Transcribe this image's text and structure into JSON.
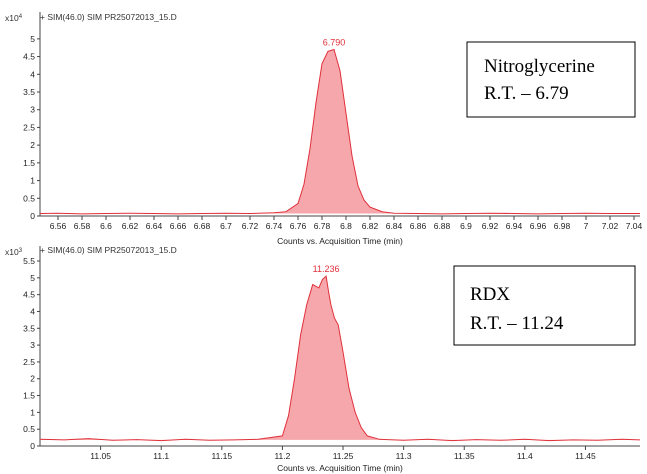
{
  "colors": {
    "trace": "#e0303a",
    "fill": "#f6a7ab",
    "axis": "#444444",
    "header_bg": "#ffffff"
  },
  "chart_data": [
    {
      "type": "line",
      "header": "+ SIM(46.0) SIM PR25072013_15.D",
      "multiplier": "x10",
      "exponent": "4",
      "xlabel": "Counts vs. Acquisition Time (min)",
      "xlim": [
        6.545,
        7.045
      ],
      "ylim": [
        0,
        5.25
      ],
      "x_ticks": [
        6.56,
        6.58,
        6.6,
        6.62,
        6.64,
        6.66,
        6.68,
        6.7,
        6.72,
        6.74,
        6.76,
        6.78,
        6.8,
        6.82,
        6.84,
        6.86,
        6.88,
        6.9,
        6.92,
        6.94,
        6.96,
        6.98,
        7.0,
        7.02,
        7.04
      ],
      "x_tick_labels": [
        "6.56",
        "6.58",
        "6.6",
        "6.62",
        "6.64",
        "6.66",
        "6.68",
        "6.7",
        "6.72",
        "6.74",
        "6.76",
        "6.78",
        "6.8",
        "6.82",
        "6.84",
        "6.86",
        "6.88",
        "6.9",
        "6.92",
        "6.94",
        "6.96",
        "6.98",
        "7",
        "7.02",
        "7.04"
      ],
      "y_ticks": [
        0,
        0.5,
        1,
        1.5,
        2,
        2.5,
        3,
        3.5,
        4,
        4.5,
        5
      ],
      "y_tick_labels": [
        "0",
        "0.5",
        "1",
        "1.5",
        "2",
        "2.5",
        "3",
        "3.5",
        "4",
        "4.5",
        "5"
      ],
      "peak": {
        "x": 6.79,
        "y": 4.7,
        "label": "6.790"
      },
      "baseline": 0.07,
      "series": [
        {
          "x": [
            6.545,
            6.56,
            6.58,
            6.6,
            6.62,
            6.64,
            6.66,
            6.68,
            6.7,
            6.72,
            6.74,
            6.75,
            6.76,
            6.765,
            6.77,
            6.775,
            6.78,
            6.785,
            6.79,
            6.795,
            6.8,
            6.805,
            6.81,
            6.815,
            6.82,
            6.83,
            6.84,
            6.86,
            6.88,
            6.9,
            6.92,
            6.94,
            6.96,
            6.98,
            7.0,
            7.02,
            7.045
          ],
          "values": [
            0.07,
            0.08,
            0.06,
            0.07,
            0.08,
            0.07,
            0.06,
            0.07,
            0.08,
            0.07,
            0.09,
            0.12,
            0.35,
            0.9,
            1.9,
            3.2,
            4.3,
            4.65,
            4.7,
            4.1,
            2.9,
            1.7,
            0.85,
            0.45,
            0.25,
            0.12,
            0.08,
            0.07,
            0.06,
            0.07,
            0.08,
            0.07,
            0.06,
            0.07,
            0.08,
            0.07,
            0.07
          ]
        }
      ],
      "annotation": [
        "Nitroglycerine",
        "R.T. – 6.79"
      ]
    },
    {
      "type": "line",
      "header": "+ SIM(46.0) SIM PR25072013_15.D",
      "multiplier": "x10",
      "exponent": "3",
      "xlabel": "Counts vs. Acquisition Time (min)",
      "xlim": [
        11.0,
        11.495
      ],
      "ylim": [
        0,
        5.5
      ],
      "x_ticks": [
        11.05,
        11.1,
        11.15,
        11.2,
        11.25,
        11.3,
        11.35,
        11.4,
        11.45
      ],
      "x_tick_labels": [
        "11.05",
        "11.1",
        "11.15",
        "11.2",
        "11.25",
        "11.3",
        "11.35",
        "11.4",
        "11.45"
      ],
      "y_ticks": [
        0,
        0.5,
        1,
        1.5,
        2,
        2.5,
        3,
        3.5,
        4,
        4.5,
        5,
        5.5
      ],
      "y_tick_labels": [
        "0",
        "0.5",
        "1",
        "1.5",
        "2",
        "2.5",
        "3",
        "3.5",
        "4",
        "4.5",
        "5",
        "5.5"
      ],
      "peak": {
        "x": 11.236,
        "y": 5.05,
        "label": "11.236"
      },
      "baseline": 0.18,
      "series": [
        {
          "x": [
            11.0,
            11.02,
            11.04,
            11.06,
            11.08,
            11.1,
            11.12,
            11.14,
            11.16,
            11.18,
            11.2,
            11.205,
            11.21,
            11.215,
            11.22,
            11.225,
            11.23,
            11.233,
            11.236,
            11.238,
            11.24,
            11.243,
            11.246,
            11.25,
            11.255,
            11.26,
            11.265,
            11.27,
            11.28,
            11.3,
            11.32,
            11.34,
            11.36,
            11.38,
            11.4,
            11.42,
            11.44,
            11.46,
            11.48,
            11.495
          ],
          "values": [
            0.2,
            0.18,
            0.22,
            0.17,
            0.19,
            0.16,
            0.2,
            0.17,
            0.18,
            0.2,
            0.3,
            0.9,
            2.0,
            3.3,
            4.2,
            4.8,
            4.7,
            4.95,
            5.05,
            4.6,
            4.2,
            3.8,
            3.6,
            2.8,
            1.7,
            1.0,
            0.55,
            0.3,
            0.2,
            0.17,
            0.2,
            0.16,
            0.19,
            0.17,
            0.2,
            0.16,
            0.18,
            0.17,
            0.2,
            0.18
          ]
        }
      ],
      "annotation": [
        "RDX",
        "R.T. – 11.24"
      ]
    }
  ]
}
